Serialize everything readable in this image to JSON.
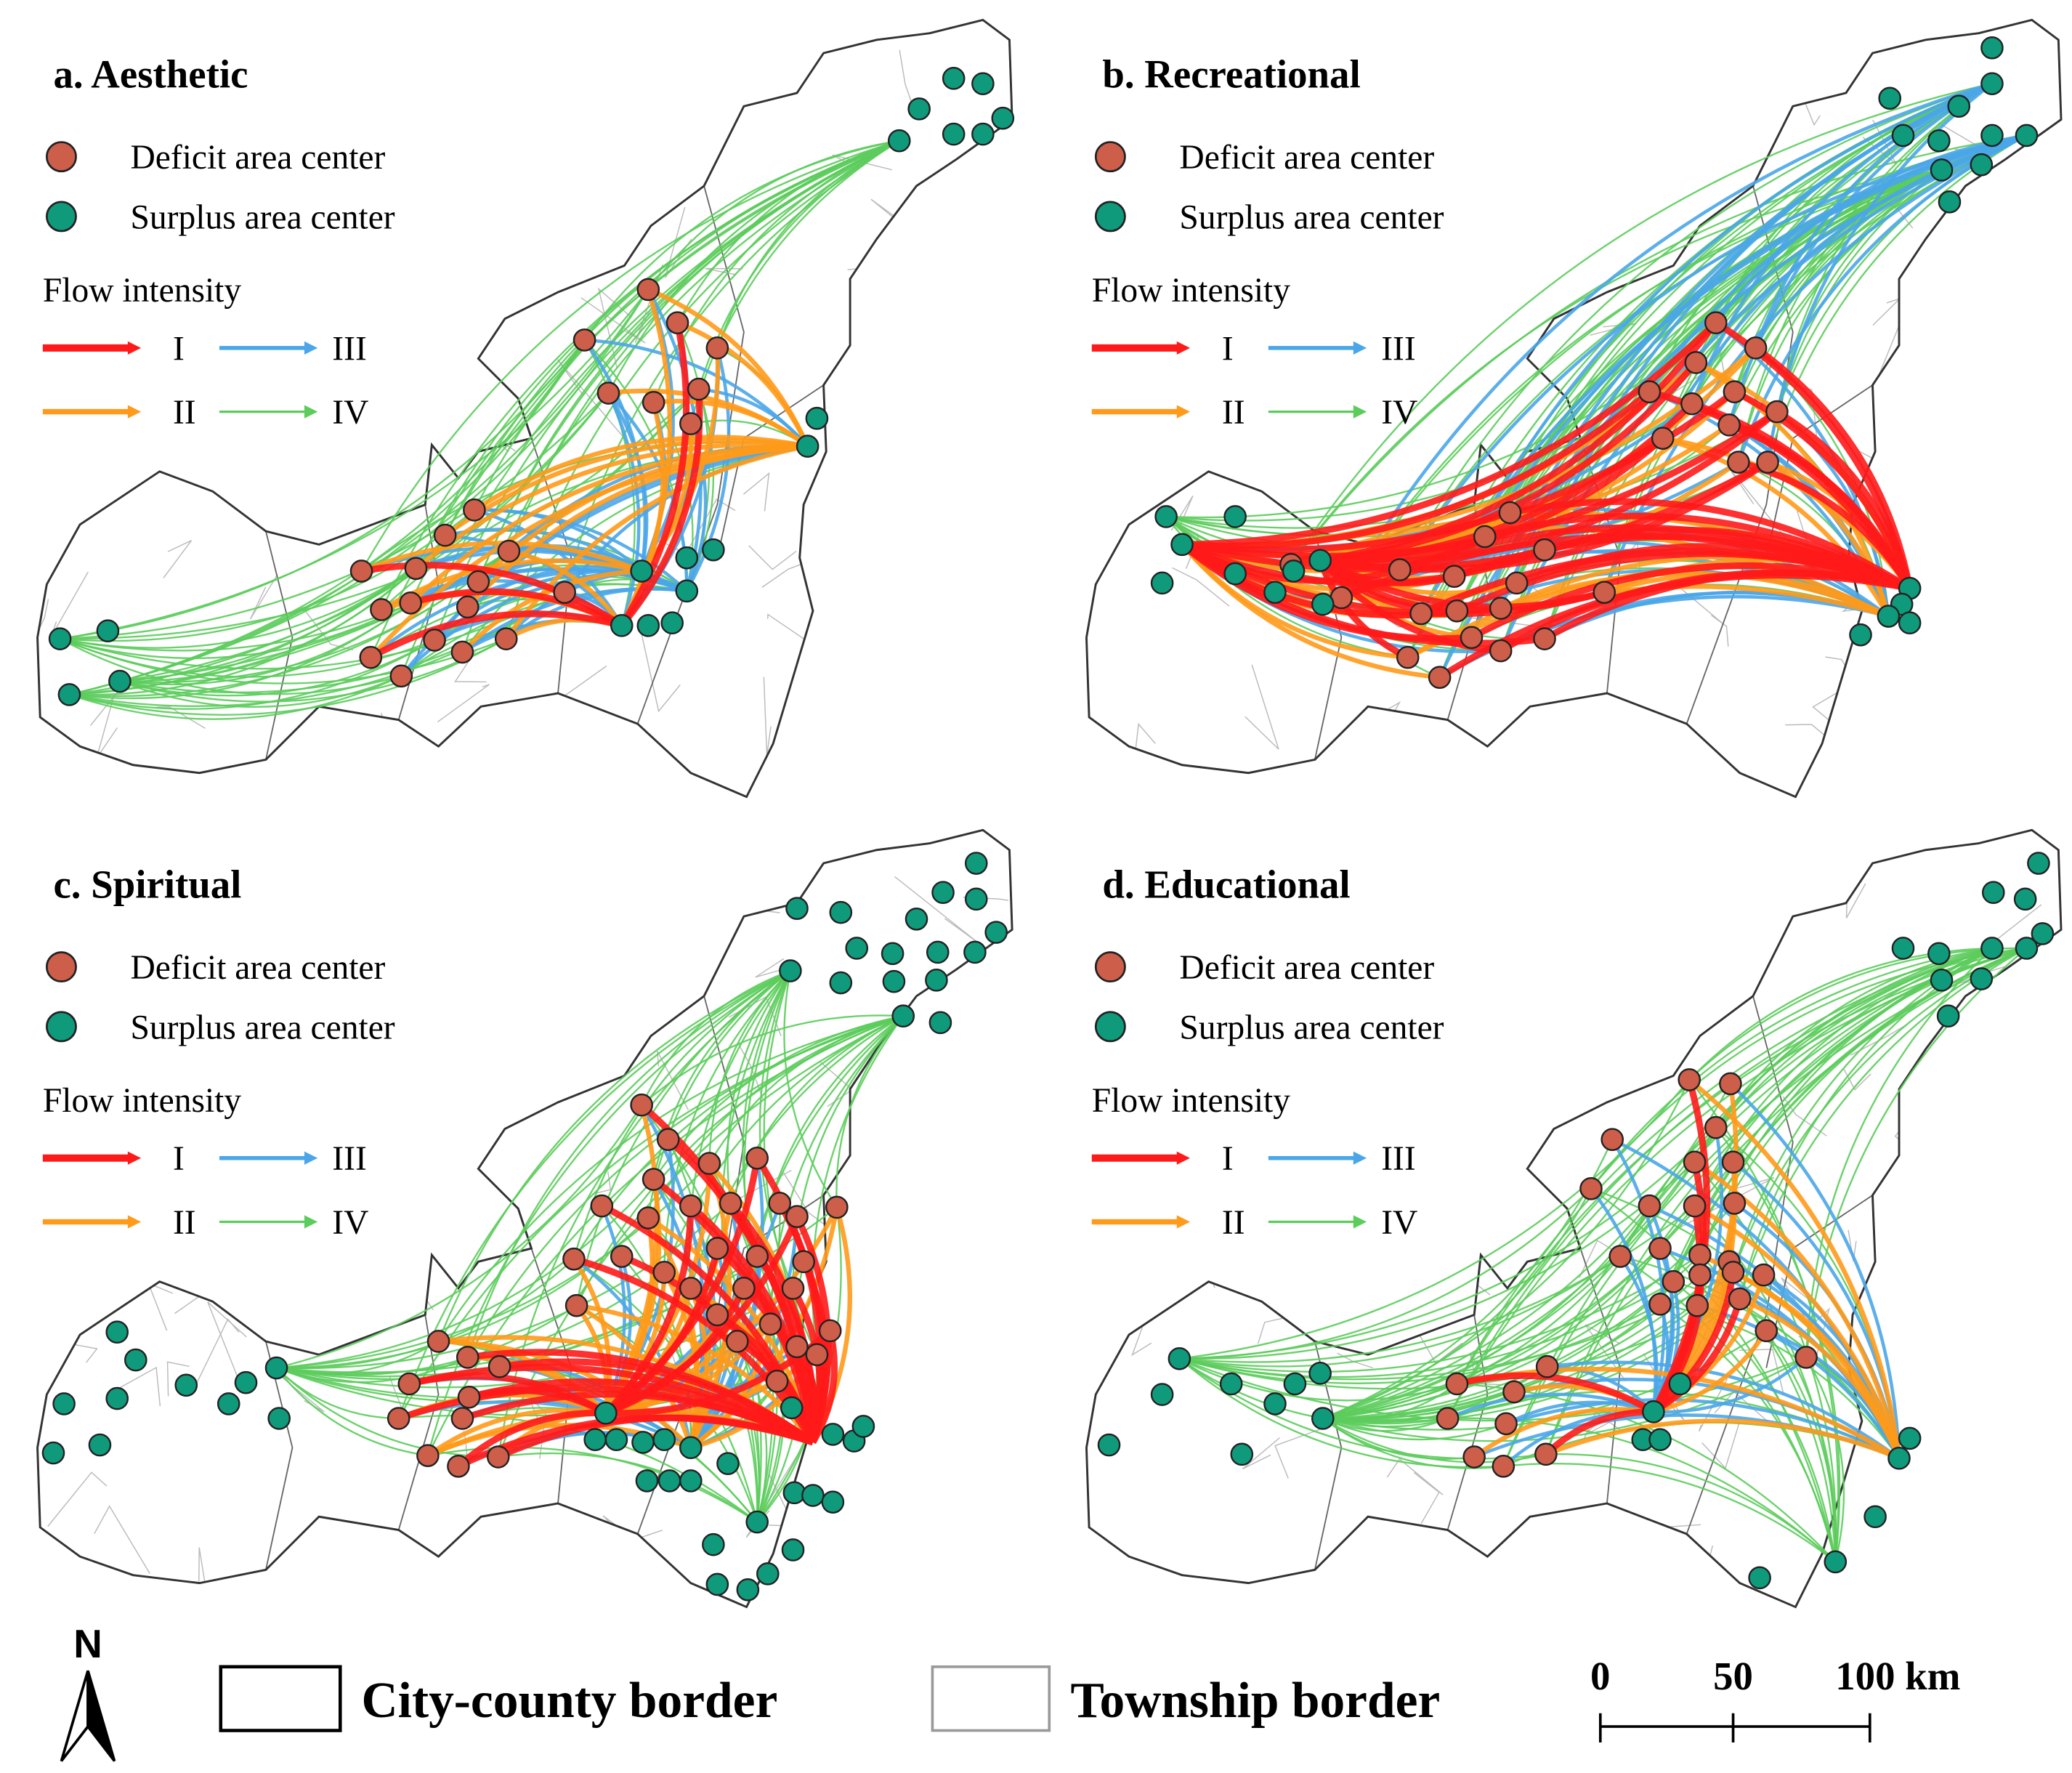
{
  "panels": [
    {
      "title": "a. Aesthetic",
      "legend": {
        "deficit": "Deficit area center",
        "surplus": "Surplus area center",
        "flow_title": "Flow intensity",
        "classes": [
          "I",
          "II",
          "III",
          "IV"
        ]
      }
    },
    {
      "title": "b. Recreational",
      "legend": {
        "deficit": "Deficit area center",
        "surplus": "Surplus area center",
        "flow_title": "Flow intensity",
        "classes": [
          "I",
          "II",
          "III",
          "IV"
        ]
      }
    },
    {
      "title": "c. Spiritual",
      "legend": {
        "deficit": "Deficit area center",
        "surplus": "Surplus area center",
        "flow_title": "Flow intensity",
        "classes": [
          "I",
          "II",
          "III",
          "IV"
        ]
      }
    },
    {
      "title": "d. Educational",
      "legend": {
        "deficit": "Deficit area center",
        "surplus": "Surplus area center",
        "flow_title": "Flow intensity",
        "classes": [
          "I",
          "II",
          "III",
          "IV"
        ]
      }
    }
  ],
  "footer": {
    "north": "N",
    "city_border": "City-county border",
    "township_border": "Township border",
    "scale": [
      "0",
      "50",
      "100 km"
    ]
  }
}
